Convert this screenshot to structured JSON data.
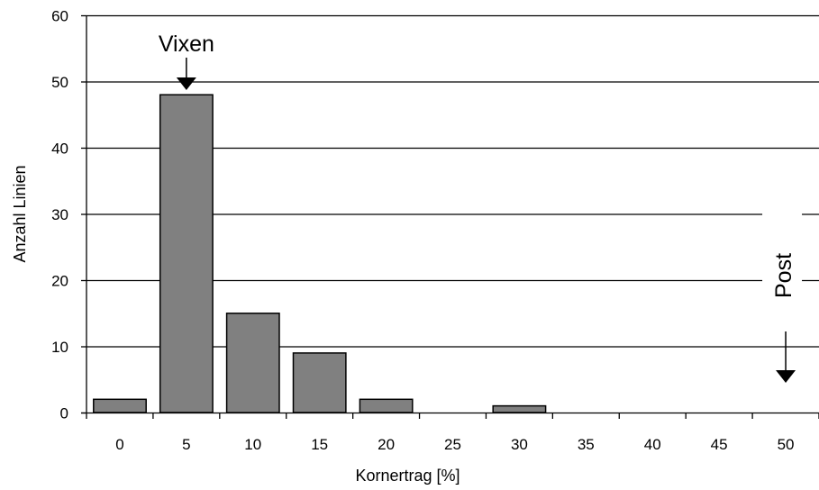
{
  "chart_data": {
    "type": "bar",
    "categories": [
      "0",
      "5",
      "10",
      "15",
      "20",
      "25",
      "30",
      "35",
      "40",
      "45",
      "50"
    ],
    "values": [
      2,
      48,
      15,
      9,
      2,
      0,
      1,
      0,
      0,
      0,
      0
    ],
    "xlabel": "Kornertrag [%]",
    "ylabel": "Anzahl Linien",
    "ylim": [
      0,
      60
    ],
    "yticks": [
      "0",
      "10",
      "20",
      "30",
      "40",
      "50",
      "60"
    ],
    "grid": true,
    "legend": "none",
    "bar_color": "#808080",
    "annotations": [
      {
        "text": "Vixen",
        "category": "5",
        "arrow": "down"
      },
      {
        "text": "Post",
        "category": "50",
        "arrow": "down"
      }
    ]
  }
}
